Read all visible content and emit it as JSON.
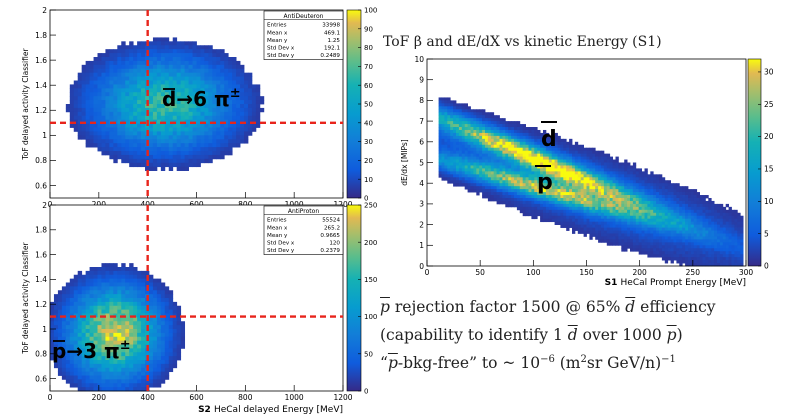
{
  "chart_data": [
    {
      "type": "heatmap",
      "histogram_name": "AntiDeuteron",
      "stats": [
        [
          "Entries",
          "33998"
        ],
        [
          "Mean x",
          "469.1"
        ],
        [
          "Mean y",
          "1.25"
        ],
        [
          "Std Dev x",
          "192.1"
        ],
        [
          "Std Dev y",
          "0.2489"
        ]
      ],
      "xlabel": "",
      "ylabel": "ToF delayed activity Classifier",
      "xlim": [
        0,
        1200
      ],
      "ylim": [
        0.5,
        2.0
      ],
      "xticks": [
        0,
        200,
        400,
        600,
        800,
        1000,
        1200
      ],
      "yticks": [
        0.6,
        0.8,
        1.0,
        1.2,
        1.4,
        1.6,
        1.8,
        2.0
      ],
      "ytick_labels": [
        "0.6",
        "0.8",
        "1",
        "1.2",
        "1.4",
        "1.6",
        "1.8",
        "2"
      ],
      "zlim": [
        0,
        100
      ],
      "zticks": [
        0,
        10,
        20,
        30,
        40,
        50,
        60,
        70,
        80,
        90,
        100
      ],
      "cut_lines": {
        "x": 400,
        "y": 1.1
      },
      "annotation": "d→6 π±",
      "density_center": {
        "x": 470,
        "y": 1.25
      }
    },
    {
      "type": "heatmap",
      "histogram_name": "AntiProton",
      "stats": [
        [
          "Entries",
          "55524"
        ],
        [
          "Mean x",
          "265.2"
        ],
        [
          "Mean y",
          "0.9665"
        ],
        [
          "Std Dev x",
          "120"
        ],
        [
          "Std Dev y",
          "0.2379"
        ]
      ],
      "xlabel": "S2 HeCal delayed Energy [MeV]",
      "ylabel": "ToF delayed activity Classifier",
      "xlim": [
        0,
        1200
      ],
      "ylim": [
        0.5,
        2.0
      ],
      "xticks": [
        0,
        200,
        400,
        600,
        800,
        1000,
        1200
      ],
      "yticks": [
        0.6,
        0.8,
        1.0,
        1.2,
        1.4,
        1.6,
        1.8,
        2.0
      ],
      "ytick_labels": [
        "0.6",
        "0.8",
        "1",
        "1.2",
        "1.4",
        "1.6",
        "1.8",
        "2"
      ],
      "zlim": [
        0,
        250
      ],
      "zticks": [
        0,
        50,
        100,
        150,
        200,
        250
      ],
      "cut_lines": {
        "x": 400,
        "y": 1.1
      },
      "annotation": "p→3 π±",
      "density_center": {
        "x": 265,
        "y": 0.97
      }
    },
    {
      "type": "heatmap",
      "title": "ToF β and dE/dX vs kinetic Energy (S1)",
      "xlabel": "S1 HeCal Prompt Energy [MeV]",
      "ylabel": "dE/dx [MIPs]",
      "xlim": [
        0,
        300
      ],
      "ylim": [
        0,
        10
      ],
      "xticks": [
        0,
        50,
        100,
        150,
        200,
        250,
        300
      ],
      "yticks": [
        0,
        1,
        2,
        3,
        4,
        5,
        6,
        7,
        8,
        9,
        10
      ],
      "zlim": [
        0,
        32
      ],
      "zticks": [
        0,
        5,
        10,
        15,
        20,
        25,
        30
      ],
      "band_labels": [
        "d",
        "p"
      ]
    }
  ],
  "notes": [
    "p rejection factor 1500 @ 65% d efficiency",
    "(capability to identify 1 d over 1000 p)",
    "“p-bkg-free” to ~ 10⁻⁶ (m²sr GeV/n)⁻¹"
  ]
}
